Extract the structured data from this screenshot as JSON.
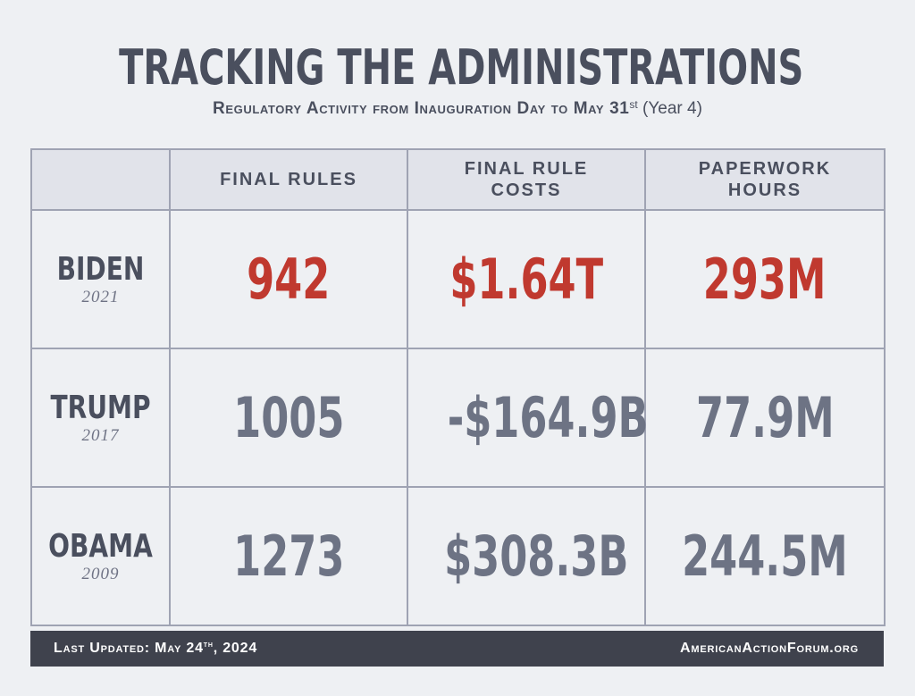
{
  "title": "TRACKING THE ADMINISTRATIONS",
  "subtitle": {
    "main": "Regulatory Activity from Inauguration Day to May 31",
    "sup": "st",
    "suffix": "(Year 4)"
  },
  "colors": {
    "accent": "#c0392f",
    "text": "#4a4f5e",
    "value_gray": "#6d7384",
    "background": "#eef0f3",
    "header_bg": "#e1e3ea",
    "footer_bg": "#3f424d"
  },
  "chart_data": {
    "type": "table",
    "title": "TRACKING THE ADMINISTRATIONS",
    "columns": [
      {
        "line1": "FINAL RULES",
        "line2": ""
      },
      {
        "line1": "FINAL RULE",
        "line2": "COSTS"
      },
      {
        "line1": "PAPERWORK",
        "line2": "HOURS"
      }
    ],
    "rows": [
      {
        "name": "BIDEN",
        "year": "2021",
        "highlight": true,
        "values": [
          "942",
          "$1.64T",
          "293M"
        ]
      },
      {
        "name": "TRUMP",
        "year": "2017",
        "highlight": false,
        "values": [
          "1005",
          "-$164.9B",
          "77.9M"
        ]
      },
      {
        "name": "OBAMA",
        "year": "2009",
        "highlight": false,
        "values": [
          "1273",
          "$308.3B",
          "244.5M"
        ]
      }
    ]
  },
  "footer": {
    "updated_prefix": "Last Updated: May 24",
    "updated_sup": "th",
    "updated_suffix": ", 2024",
    "site": "AmericanActionForum.org"
  }
}
